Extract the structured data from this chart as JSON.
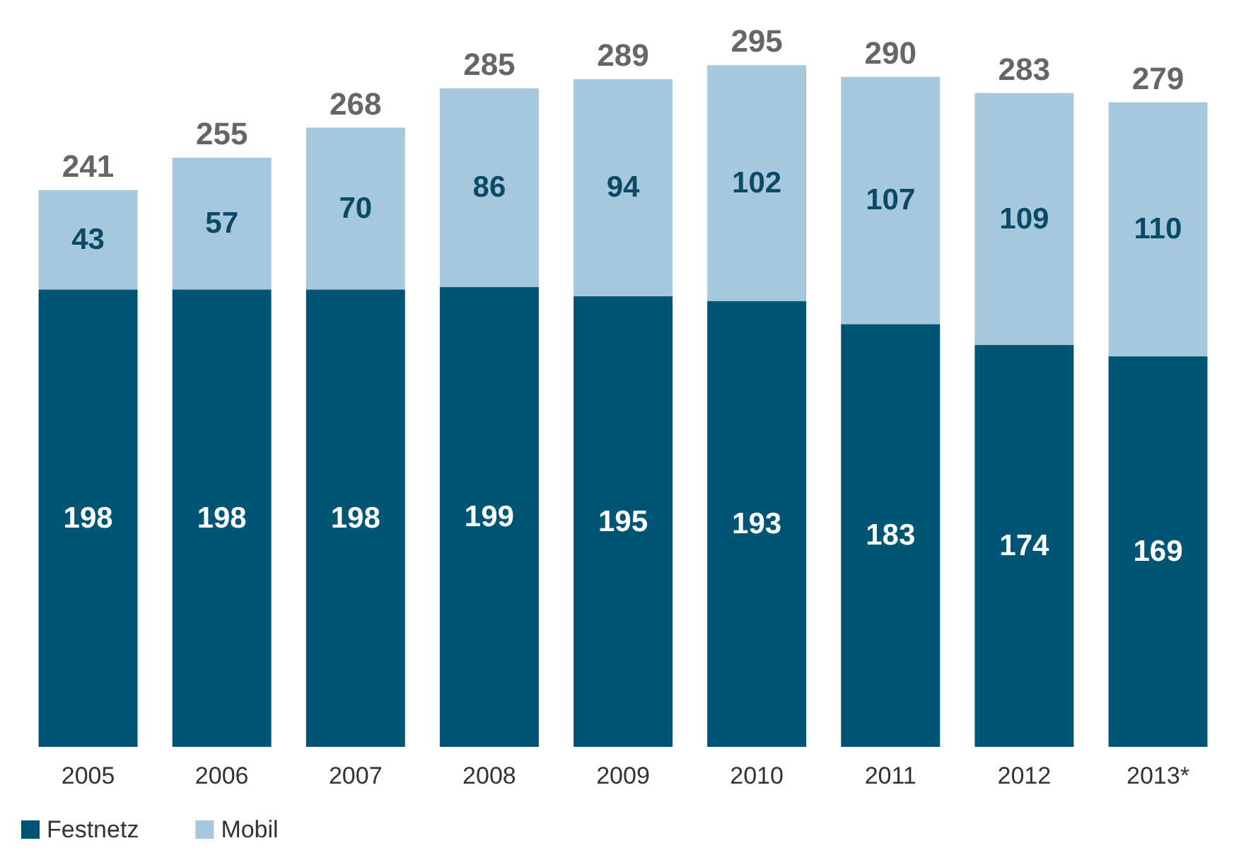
{
  "chart_data": {
    "type": "bar",
    "stacked": true,
    "data_labels": true,
    "legend": "bottom left",
    "categories": [
      "2005",
      "2006",
      "2007",
      "2008",
      "2009",
      "2010",
      "2011",
      "2012",
      "2013*"
    ],
    "series": [
      {
        "name": "Festnetz",
        "color": "#005574",
        "values": [
          198,
          198,
          198,
          199,
          195,
          193,
          183,
          174,
          169
        ]
      },
      {
        "name": "Mobil",
        "color": "#a5c8dc",
        "values": [
          43,
          57,
          70,
          86,
          94,
          102,
          107,
          109,
          110
        ]
      }
    ],
    "totals": [
      "241",
      "255",
      "268",
      "285",
      "289",
      "295",
      "290",
      "283",
      "279"
    ]
  }
}
